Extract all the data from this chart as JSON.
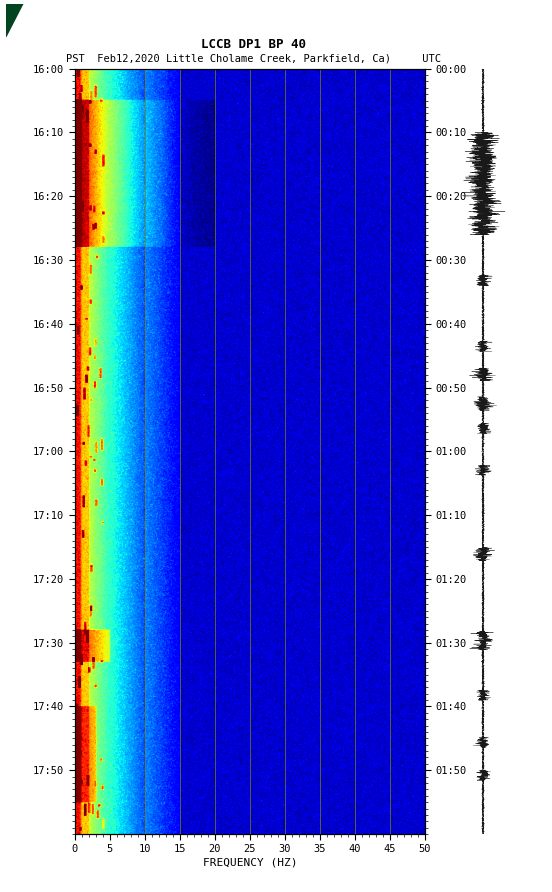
{
  "title_line1": "LCCB DP1 BP 40",
  "title_line2": "PST  Feb12,2020 Little Cholame Creek, Parkfield, Ca)     UTC",
  "left_yticks": [
    "16:00",
    "16:10",
    "16:20",
    "16:30",
    "16:40",
    "16:50",
    "17:00",
    "17:10",
    "17:20",
    "17:30",
    "17:40",
    "17:50"
  ],
  "right_yticks": [
    "00:00",
    "00:10",
    "00:20",
    "00:30",
    "00:40",
    "00:50",
    "01:00",
    "01:10",
    "01:20",
    "01:30",
    "01:40",
    "01:50"
  ],
  "xticks": [
    0,
    5,
    10,
    15,
    20,
    25,
    30,
    35,
    40,
    45,
    50
  ],
  "xlabel": "FREQUENCY (HZ)",
  "freq_min": 0,
  "freq_max": 50,
  "background_color": "#ffffff",
  "spectrogram_vlines_freq": [
    10,
    15,
    20,
    25,
    30,
    35,
    40,
    45
  ],
  "vline_color": "#808000",
  "fig_width": 5.52,
  "fig_height": 8.92,
  "dpi": 100
}
